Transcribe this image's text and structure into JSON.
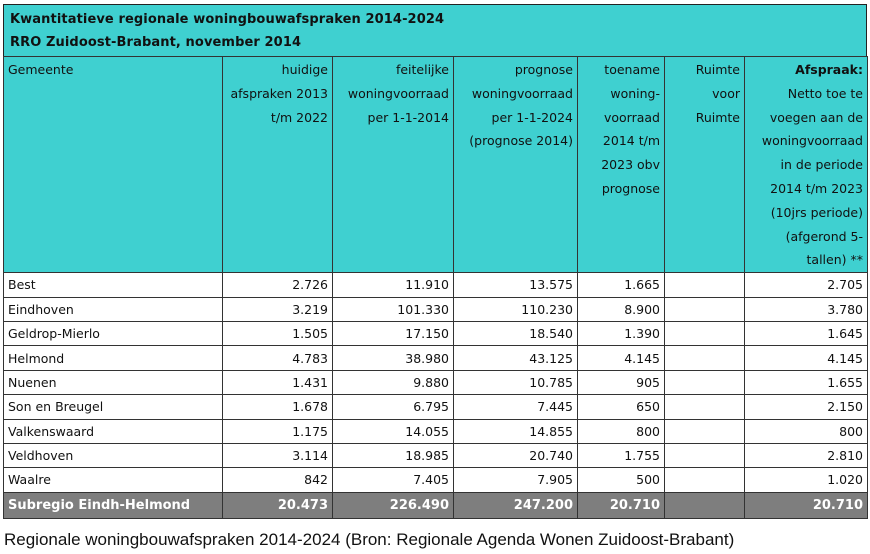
{
  "title": {
    "line1": "Kwantitatieve regionale woningbouwafspraken 2014-2024",
    "line2": "RRO Zuidoost-Brabant, november 2014"
  },
  "columns": [
    {
      "label": "Gemeente"
    },
    {
      "label": "huidige afspraken 2013 t/m 2022"
    },
    {
      "label": "feitelijke woningvoorraad per 1-1-2014"
    },
    {
      "label": "prognose woningvoorraad per 1-1-2024 (prognose 2014)"
    },
    {
      "label": "toename woning-voorraad 2014 t/m 2023 obv prognose"
    },
    {
      "label": "Ruimte voor Ruimte"
    },
    {
      "label_bold": "Afspraak:",
      "label": "Netto toe te voegen aan de woningvoorraad in de periode 2014 t/m 2023 (10jrs periode) (afgerond 5-tallen) **"
    }
  ],
  "rows": [
    {
      "gemeente": "Best",
      "huidige": "2.726",
      "feitelijke": "11.910",
      "prognose": "13.575",
      "toename": "1.665",
      "ruimte": "",
      "afspraak": "2.705"
    },
    {
      "gemeente": "Eindhoven",
      "huidige": "3.219",
      "feitelijke": "101.330",
      "prognose": "110.230",
      "toename": "8.900",
      "ruimte": "",
      "afspraak": "3.780"
    },
    {
      "gemeente": "Geldrop-Mierlo",
      "huidige": "1.505",
      "feitelijke": "17.150",
      "prognose": "18.540",
      "toename": "1.390",
      "ruimte": "",
      "afspraak": "1.645"
    },
    {
      "gemeente": "Helmond",
      "huidige": "4.783",
      "feitelijke": "38.980",
      "prognose": "43.125",
      "toename": "4.145",
      "ruimte": "",
      "afspraak": "4.145"
    },
    {
      "gemeente": "Nuenen",
      "huidige": "1.431",
      "feitelijke": "9.880",
      "prognose": "10.785",
      "toename": "905",
      "ruimte": "",
      "afspraak": "1.655"
    },
    {
      "gemeente": "Son en Breugel",
      "huidige": "1.678",
      "feitelijke": "6.795",
      "prognose": "7.445",
      "toename": "650",
      "ruimte": "",
      "afspraak": "2.150"
    },
    {
      "gemeente": "Valkenswaard",
      "huidige": "1.175",
      "feitelijke": "14.055",
      "prognose": "14.855",
      "toename": "800",
      "ruimte": "",
      "afspraak": "800"
    },
    {
      "gemeente": "Veldhoven",
      "huidige": "3.114",
      "feitelijke": "18.985",
      "prognose": "20.740",
      "toename": "1.755",
      "ruimte": "",
      "afspraak": "2.810"
    },
    {
      "gemeente": "Waalre",
      "huidige": "842",
      "feitelijke": "7.405",
      "prognose": "7.905",
      "toename": "500",
      "ruimte": "",
      "afspraak": "1.020"
    }
  ],
  "total": {
    "gemeente": "Subregio Eindh-Helmond",
    "huidige": "20.473",
    "feitelijke": "226.490",
    "prognose": "247.200",
    "toename": "20.710",
    "ruimte": "",
    "afspraak": "20.710"
  },
  "caption": "Regionale woningbouwafspraken 2014-2024 (Bron: Regionale Agenda Wonen Zuidoost-Brabant)",
  "colors": {
    "header_bg": "#3fd0d0",
    "total_bg": "#7e7e7e"
  }
}
